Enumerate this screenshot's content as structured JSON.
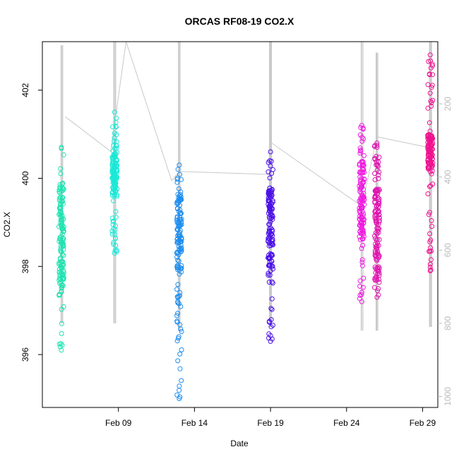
{
  "chart_data": {
    "type": "scatter",
    "title": "ORCAS RF08-19 CO2.X",
    "xlabel": "Date",
    "ylabel": "CO2.X",
    "x_axis": {
      "type": "date",
      "range": [
        "2016-02-04",
        "2016-03-01"
      ],
      "tick_labels": [
        {
          "date": "2016-02-09",
          "label": "Feb 09"
        },
        {
          "date": "2016-02-14",
          "label": "Feb 14"
        },
        {
          "date": "2016-02-19",
          "label": "Feb 19"
        },
        {
          "date": "2016-02-24",
          "label": "Feb 24"
        },
        {
          "date": "2016-02-29",
          "label": "Feb 29"
        }
      ]
    },
    "y_axis": {
      "range": [
        394.8,
        403.1
      ],
      "ticks": [
        396,
        398,
        400,
        402
      ]
    },
    "y2_axis": {
      "label_color": "#bbbbbb",
      "range": [
        1030,
        30
      ],
      "ticks": [
        200,
        400,
        600,
        800,
        1000
      ],
      "reversed": true
    },
    "grid": false,
    "legend": "none",
    "altitude_trace_color": "#c8c8c8",
    "altitude_trace_points": [
      {
        "x": "2016-02-05 12:00",
        "alt": 235
      },
      {
        "x": "2016-02-08 12:00",
        "alt": 330
      },
      {
        "x": "2016-02-09 12:00",
        "alt": 30
      },
      {
        "x": "2016-02-12 12:00",
        "alt": 410
      },
      {
        "x": "2016-02-13 00:00",
        "alt": 385
      },
      {
        "x": "2016-02-19 00:00",
        "alt": 393
      },
      {
        "x": "2016-02-19 00:00",
        "alt": 305
      },
      {
        "x": "2016-02-25 00:00",
        "alt": 480
      },
      {
        "x": "2016-02-26 00:00",
        "alt": 290
      },
      {
        "x": "2016-02-29 12:00",
        "alt": 320
      }
    ],
    "series": [
      {
        "color": "#1de3b0",
        "x": "2016-02-05 06:00",
        "alt_spread": [
          40,
          800
        ],
        "y_range": [
          396.1,
          400.7
        ],
        "y_cluster": [
          397.5,
          399.9
        ]
      },
      {
        "color": "#19e8d6",
        "x": "2016-02-08 18:00",
        "alt_spread": [
          30,
          800
        ],
        "y_range": [
          398.3,
          401.5
        ],
        "y_cluster": [
          399.6,
          400.6
        ]
      },
      {
        "color": "#1c8ef0",
        "x": "2016-02-13 00:00",
        "alt_spread": [
          30,
          820
        ],
        "y_range": [
          395.0,
          400.3
        ],
        "y_cluster": [
          397.9,
          399.7
        ]
      },
      {
        "color": "#4a10e8",
        "x": "2016-02-19 00:00",
        "alt_spread": [
          30,
          810
        ],
        "y_range": [
          396.3,
          400.6
        ],
        "y_cluster": [
          398.0,
          399.8
        ]
      },
      {
        "color": "#f01ae0",
        "x": "2016-02-25 00:00",
        "alt_spread": [
          30,
          820
        ],
        "y_range": [
          397.2,
          401.2
        ],
        "y_cluster": [
          398.6,
          400.4
        ]
      },
      {
        "color": "#e014b0",
        "x": "2016-02-26 00:00",
        "alt_spread": [
          60,
          820
        ],
        "y_range": [
          397.3,
          400.8
        ],
        "y_cluster": [
          397.7,
          399.8
        ]
      },
      {
        "color": "#f01290",
        "x": "2016-02-29 12:00",
        "alt_spread": [
          30,
          810
        ],
        "y_range": [
          397.9,
          402.8
        ],
        "y_cluster": [
          400.2,
          401.0
        ]
      }
    ]
  }
}
